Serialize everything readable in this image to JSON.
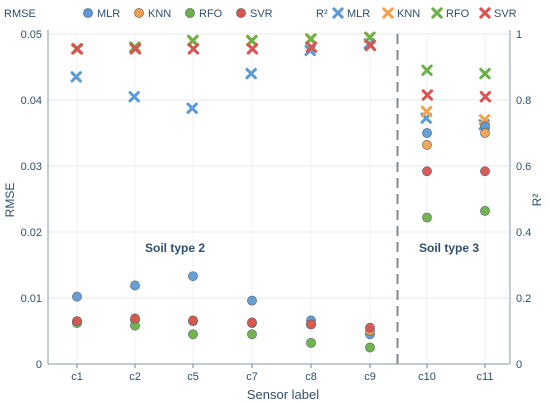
{
  "chart_data": {
    "type": "scatter",
    "xlabel": "Sensor label",
    "ylabel_left": "RMSE",
    "ylabel_right": "R²",
    "categories": [
      "c1",
      "c2",
      "c5",
      "c7",
      "c8",
      "c9",
      "c10",
      "c11"
    ],
    "ylim_left": [
      0,
      0.05
    ],
    "yticks_left": [
      "0",
      "0.01",
      "0.02",
      "0.03",
      "0.04",
      "0.05"
    ],
    "ylim_right": [
      0,
      1
    ],
    "yticks_right": [
      "0",
      "0.2",
      "0.4",
      "0.6",
      "0.8",
      "1"
    ],
    "grid": true,
    "annotations": [
      {
        "text": "Soil type 2",
        "x_category": "c5",
        "y_rmse": 0.017
      },
      {
        "text": "Soil type 3",
        "x_category": "c10",
        "y_rmse": 0.017
      }
    ],
    "divider_after_category": "c9",
    "legends": {
      "left_title": "RMSE",
      "right_title": "R²",
      "items": [
        "MLR",
        "KNN",
        "RFO",
        "SVR"
      ]
    },
    "colors": {
      "MLR": "#5b9bd5",
      "KNN": "#f5a04a",
      "RFO": "#6cb048",
      "SVR": "#d9534f"
    },
    "rmse_series": [
      {
        "name": "MLR",
        "values": [
          0.0102,
          0.0119,
          0.0133,
          0.0096,
          0.0066,
          0.0045,
          0.035,
          0.036
        ]
      },
      {
        "name": "KNN",
        "values": [
          0.0065,
          0.0067,
          0.0065,
          0.0062,
          0.006,
          0.005,
          0.0332,
          0.035
        ]
      },
      {
        "name": "RFO",
        "values": [
          0.0062,
          0.0058,
          0.0045,
          0.0045,
          0.0032,
          0.0025,
          0.0222,
          0.0232
        ]
      },
      {
        "name": "SVR",
        "values": [
          0.0065,
          0.0069,
          0.0066,
          0.0063,
          0.006,
          0.0055,
          0.0292,
          0.0292
        ]
      }
    ],
    "r2_series": [
      {
        "name": "MLR",
        "values": [
          0.87,
          0.81,
          0.775,
          0.88,
          0.95,
          0.97,
          0.745,
          0.725
        ]
      },
      {
        "name": "KNN",
        "values": [
          0.955,
          0.96,
          0.98,
          0.98,
          0.985,
          0.99,
          0.765,
          0.74
        ]
      },
      {
        "name": "RFO",
        "values": [
          0.955,
          0.96,
          0.98,
          0.98,
          0.985,
          0.99,
          0.89,
          0.88
        ]
      },
      {
        "name": "SVR",
        "values": [
          0.955,
          0.955,
          0.955,
          0.955,
          0.96,
          0.965,
          0.815,
          0.81
        ]
      }
    ]
  }
}
